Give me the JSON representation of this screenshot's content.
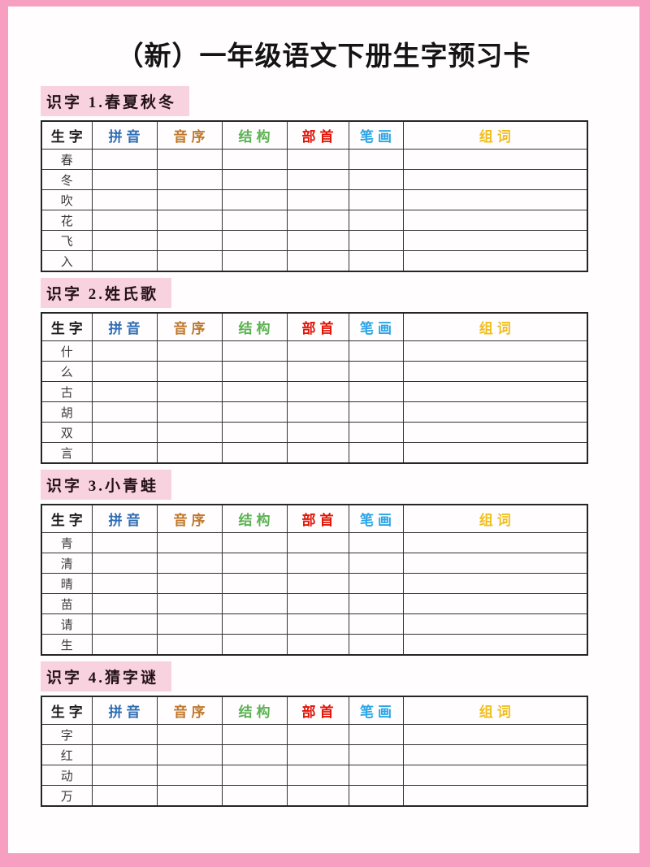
{
  "page": {
    "title": "（新）一年级语文下册生字预习卡"
  },
  "columns": [
    {
      "label": "生字",
      "color": "#1a1a1a"
    },
    {
      "label": "拼音",
      "color": "#2e6db4"
    },
    {
      "label": "音序",
      "color": "#c0772a"
    },
    {
      "label": "结构",
      "color": "#5cb253"
    },
    {
      "label": "部首",
      "color": "#e01507"
    },
    {
      "label": "笔画",
      "color": "#2aa5e6"
    },
    {
      "label": "组词",
      "color": "#f0be1c"
    }
  ],
  "sections": [
    {
      "label": "识字 1.春夏秋冬",
      "characters": [
        "春",
        "冬",
        "吹",
        "花",
        "飞",
        "入"
      ]
    },
    {
      "label": "识字 2.姓氏歌",
      "characters": [
        "什",
        "么",
        "古",
        "胡",
        "双",
        "言"
      ]
    },
    {
      "label": "识字 3.小青蛙",
      "characters": [
        "青",
        "清",
        "晴",
        "苗",
        "请",
        "生"
      ]
    },
    {
      "label": "识字 4.猜字谜",
      "characters": [
        "字",
        "红",
        "动",
        "万"
      ]
    }
  ],
  "colors": {
    "frame_pink": "#f69fc1",
    "section_highlight": "#f9d2df",
    "page_background": "#fffdfe",
    "table_border": "#333333"
  }
}
